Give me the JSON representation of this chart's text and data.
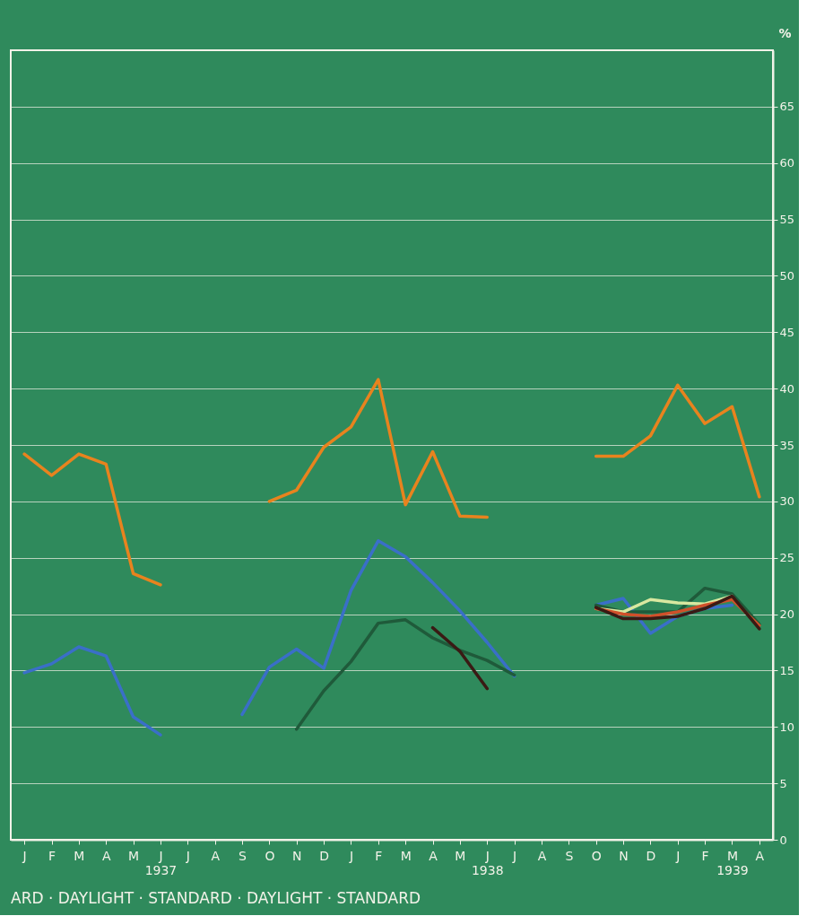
{
  "chart_data": {
    "type": "line",
    "ylabel": "%",
    "categories": [
      "J",
      "F",
      "M",
      "A",
      "M",
      "J\n1937",
      "J",
      "A",
      "S",
      "O",
      "N",
      "D",
      "J",
      "F",
      "M",
      "A",
      "M",
      "J\n1938",
      "J",
      "A",
      "S",
      "O",
      "N",
      "D",
      "J",
      "F",
      "M\n1939",
      "A"
    ],
    "ylim": [
      0,
      70
    ],
    "yticks": [
      0,
      5,
      10,
      15,
      20,
      25,
      30,
      35,
      40,
      45,
      50,
      55,
      60,
      65
    ],
    "grid": "y",
    "legend": false,
    "marker": "none",
    "line_style": "solid",
    "annotations": [
      "ARD · DAYLIGHT · STANDARD · DAYLIGHT · STANDARD"
    ],
    "series": [
      {
        "color": "#e8831e",
        "values": [
          34.2,
          32.3,
          34.2,
          33.3,
          23.6,
          22.6,
          null,
          null,
          null,
          30.0,
          31.0,
          34.8,
          36.6,
          40.8,
          29.7,
          34.4,
          28.7,
          28.6,
          null,
          null,
          null,
          34.0,
          34.0,
          35.8,
          40.3,
          36.9,
          38.4,
          30.4
        ]
      },
      {
        "color": "#3a6fc8",
        "values": [
          14.8,
          15.6,
          17.1,
          16.3,
          10.9,
          9.3,
          null,
          null,
          11.1,
          15.3,
          16.9,
          15.2,
          22.1,
          26.5,
          25.1,
          22.8,
          20.3,
          17.5,
          14.5,
          null,
          null,
          20.8,
          21.4,
          18.3,
          19.8,
          20.5,
          20.8,
          null
        ]
      },
      {
        "color": "#1f5a3a",
        "values": [
          null,
          null,
          null,
          null,
          null,
          null,
          null,
          null,
          null,
          null,
          9.8,
          13.2,
          15.8,
          19.2,
          19.5,
          17.9,
          16.8,
          15.9,
          14.6,
          null,
          null,
          20.8,
          20.2,
          20.2,
          20.2,
          22.3,
          21.8,
          19.1
        ]
      },
      {
        "color": "#d8e8a0",
        "values": [
          null,
          null,
          null,
          null,
          null,
          null,
          null,
          null,
          null,
          null,
          null,
          null,
          null,
          null,
          null,
          null,
          null,
          null,
          null,
          null,
          null,
          20.5,
          20.2,
          21.3,
          21.0,
          20.9,
          21.6,
          null
        ]
      },
      {
        "color": "#d0502a",
        "values": [
          null,
          null,
          null,
          null,
          null,
          null,
          null,
          null,
          null,
          null,
          null,
          null,
          null,
          null,
          null,
          null,
          null,
          null,
          null,
          null,
          null,
          20.5,
          20.0,
          19.8,
          20.2,
          20.8,
          21.3,
          19.0
        ]
      },
      {
        "color": "#3a1a14",
        "values": [
          null,
          null,
          null,
          null,
          null,
          null,
          null,
          null,
          null,
          null,
          null,
          null,
          null,
          null,
          null,
          18.8,
          16.7,
          13.4,
          null,
          null,
          null,
          20.6,
          19.6,
          19.6,
          19.8,
          20.5,
          21.6,
          18.7
        ]
      }
    ]
  }
}
